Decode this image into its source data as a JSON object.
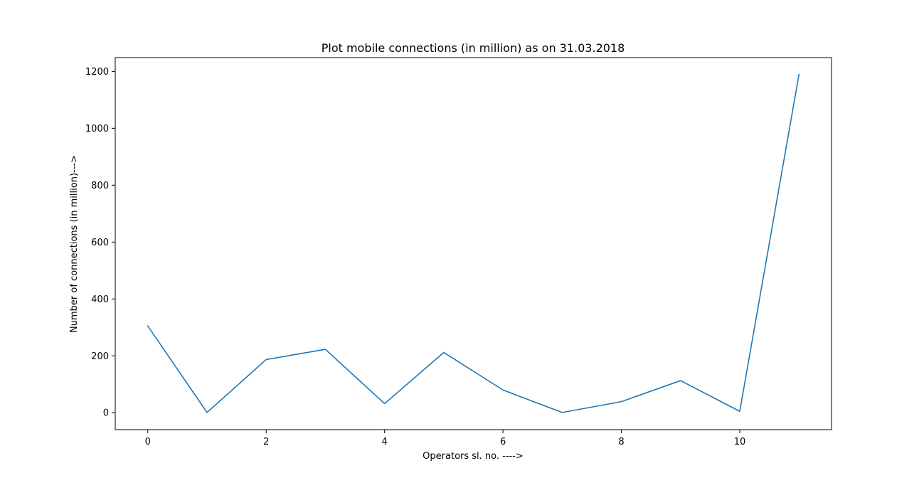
{
  "chart_data": {
    "type": "line",
    "title": "Plot mobile connections (in million) as on 31.03.2018",
    "xlabel": "Operators sl. no. ---->",
    "ylabel": "Number of connections (in million)--->",
    "x": [
      0,
      1,
      2,
      3,
      4,
      5,
      6,
      7,
      8,
      9,
      10,
      11
    ],
    "series": [
      {
        "values": [
          305,
          1,
          187,
          223,
          32,
          212,
          80,
          1,
          39,
          113,
          5,
          1189
        ]
      }
    ],
    "xlim": [
      -0.55,
      11.55
    ],
    "ylim": [
      -59.4,
      1248.4
    ],
    "xticks": [
      0,
      2,
      4,
      6,
      8,
      10
    ],
    "yticks": [
      0,
      200,
      400,
      600,
      800,
      1000,
      1200
    ],
    "grid": false,
    "line_color": "#1f77b4"
  }
}
